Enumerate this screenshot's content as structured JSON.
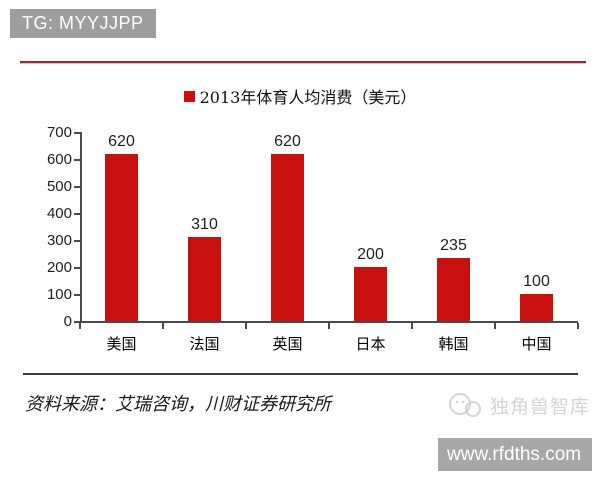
{
  "header": {
    "badge": "TG: MYYJJPP"
  },
  "colors": {
    "badge_bg": "#9e9e9e",
    "top_rule": "#8a3238",
    "bar": "#c8100f",
    "axis": "#4a4a4a",
    "divider": "#3d3d3d",
    "watermark": "#d4d4d4",
    "webbox_bg": "#a7a7a7"
  },
  "chart_data": {
    "type": "bar",
    "title": "2013年体育人均消费（美元）",
    "categories": [
      "美国",
      "法国",
      "英国",
      "日本",
      "韩国",
      "中国"
    ],
    "values": [
      620,
      310,
      620,
      200,
      235,
      100
    ],
    "xlabel": "",
    "ylabel": "",
    "ylim": [
      0,
      700
    ],
    "ytick_step": 100,
    "grid": false,
    "legend_position": "top-center",
    "data_labels": true
  },
  "footer": {
    "source": "资料来源：艾瑞咨询，川财证券研究所",
    "watermark": "独角兽智库",
    "website": "www.rfdths.com"
  }
}
